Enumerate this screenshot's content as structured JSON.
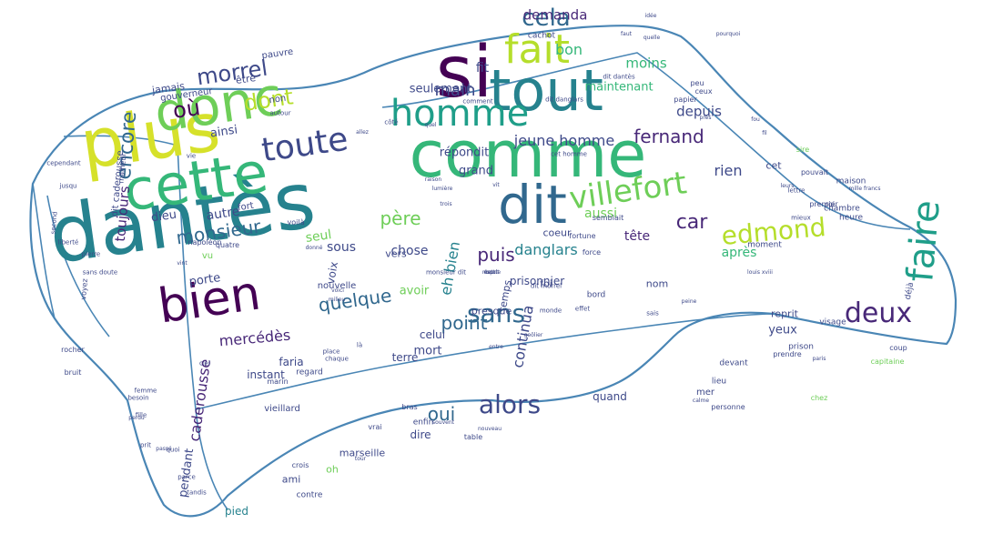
{
  "outline_color": "#4a86b5",
  "palette": [
    "#440154",
    "#482878",
    "#3e4989",
    "#31688e",
    "#26828e",
    "#1f9e89",
    "#35b779",
    "#6ece58",
    "#b5de2b",
    "#fde725"
  ],
  "words": [
    {
      "text": "dantès",
      "color": "#26828e",
      "size": 86
    },
    {
      "text": "comme",
      "color": "#35b779",
      "size": 70
    },
    {
      "text": "plus",
      "color": "#d6e12a",
      "size": 74
    },
    {
      "text": "si",
      "color": "#440154",
      "size": 78
    },
    {
      "text": "cette",
      "color": "#35b779",
      "size": 62
    },
    {
      "text": "tout",
      "color": "#26828e",
      "size": 62
    },
    {
      "text": "donc",
      "color": "#6ece58",
      "size": 58
    },
    {
      "text": "dit",
      "color": "#31688e",
      "size": 58
    },
    {
      "text": "bien",
      "color": "#440154",
      "size": 52
    },
    {
      "text": "fait",
      "color": "#b5de2b",
      "size": 44
    },
    {
      "text": "homme",
      "color": "#1f9e89",
      "size": 40
    },
    {
      "text": "faire",
      "color": "#1f9e89",
      "size": 40
    },
    {
      "text": "toute",
      "color": "#3e4989",
      "size": 36
    },
    {
      "text": "villefort",
      "color": "#6ece58",
      "size": 34
    },
    {
      "text": "edmond",
      "color": "#b5de2b",
      "size": 28
    },
    {
      "text": "deux",
      "color": "#482878",
      "size": 30
    },
    {
      "text": "alors",
      "color": "#3e4989",
      "size": 28
    },
    {
      "text": "sans",
      "color": "#31688e",
      "size": 28
    },
    {
      "text": "morrel",
      "color": "#3e4989",
      "size": 24
    },
    {
      "text": "cela",
      "color": "#31688e",
      "size": 26
    },
    {
      "text": "encore",
      "color": "#31688e",
      "size": 22
    },
    {
      "text": "monsieur",
      "color": "#31688e",
      "size": 20
    },
    {
      "text": "quelque",
      "color": "#31688e",
      "size": 20
    },
    {
      "text": "où",
      "color": "#440154",
      "size": 24
    },
    {
      "text": "dont",
      "color": "#b5de2b",
      "size": 24
    },
    {
      "text": "fernand",
      "color": "#482878",
      "size": 20
    },
    {
      "text": "car",
      "color": "#482878",
      "size": 22
    },
    {
      "text": "point",
      "color": "#31688e",
      "size": 20
    },
    {
      "text": "oui",
      "color": "#31688e",
      "size": 20
    },
    {
      "text": "père",
      "color": "#6ece58",
      "size": 20
    },
    {
      "text": "puis",
      "color": "#482878",
      "size": 20
    },
    {
      "text": "main",
      "color": "#3e4989",
      "size": 18
    },
    {
      "text": "caderousse",
      "color": "#482878",
      "size": 16
    },
    {
      "text": "rien",
      "color": "#3e4989",
      "size": 16
    },
    {
      "text": "mercédès",
      "color": "#482878",
      "size": 16
    },
    {
      "text": "danglars",
      "color": "#26828e",
      "size": 16
    },
    {
      "text": "bon",
      "color": "#35b779",
      "size": 16
    },
    {
      "text": "jeune homme",
      "color": "#3e4989",
      "size": 16
    },
    {
      "text": "continua",
      "color": "#3e4989",
      "size": 16
    },
    {
      "text": "eh bien",
      "color": "#26828e",
      "size": 16
    },
    {
      "text": "demanda",
      "color": "#482878",
      "size": 15
    },
    {
      "text": "moins",
      "color": "#35b779",
      "size": 15
    },
    {
      "text": "toujours",
      "color": "#482878",
      "size": 15
    },
    {
      "text": "depuis",
      "color": "#3e4989",
      "size": 15
    },
    {
      "text": "tête",
      "color": "#482878",
      "size": 14
    },
    {
      "text": "pendant",
      "color": "#3e4989",
      "size": 13
    },
    {
      "text": "après",
      "color": "#35b779",
      "size": 14
    },
    {
      "text": "chose",
      "color": "#3e4989",
      "size": 14
    },
    {
      "text": "autre",
      "color": "#3e4989",
      "size": 14
    },
    {
      "text": "seul",
      "color": "#6ece58",
      "size": 14
    },
    {
      "text": "sous",
      "color": "#3e4989",
      "size": 14
    },
    {
      "text": "aussi",
      "color": "#6ece58",
      "size": 14
    },
    {
      "text": "maintenant",
      "color": "#35b779",
      "size": 13
    },
    {
      "text": "répondit",
      "color": "#3e4989",
      "size": 13
    },
    {
      "text": "seulement",
      "color": "#3e4989",
      "size": 13
    },
    {
      "text": "fit",
      "color": "#3e4989",
      "size": 14
    },
    {
      "text": "grand",
      "color": "#3e4989",
      "size": 13
    },
    {
      "text": "yeux",
      "color": "#3e4989",
      "size": 13
    },
    {
      "text": "ainsi",
      "color": "#3e4989",
      "size": 13
    },
    {
      "text": "dieu",
      "color": "#3e4989",
      "size": 13
    },
    {
      "text": "porte",
      "color": "#3e4989",
      "size": 13
    },
    {
      "text": "avoir",
      "color": "#6ece58",
      "size": 13
    },
    {
      "text": "voix",
      "color": "#3e4989",
      "size": 12
    },
    {
      "text": "mort",
      "color": "#3e4989",
      "size": 13
    },
    {
      "text": "celui",
      "color": "#3e4989",
      "size": 12
    },
    {
      "text": "terre",
      "color": "#3e4989",
      "size": 12
    },
    {
      "text": "faria",
      "color": "#3e4989",
      "size": 12
    },
    {
      "text": "instant",
      "color": "#3e4989",
      "size": 12
    },
    {
      "text": "prisonnier",
      "color": "#3e4989",
      "size": 12
    },
    {
      "text": "quand",
      "color": "#3e4989",
      "size": 12
    },
    {
      "text": "dire",
      "color": "#3e4989",
      "size": 12
    },
    {
      "text": "marseille",
      "color": "#3e4989",
      "size": 11
    },
    {
      "text": "ami",
      "color": "#3e4989",
      "size": 11
    },
    {
      "text": "oh",
      "color": "#6ece58",
      "size": 11
    },
    {
      "text": "pied",
      "color": "#26828e",
      "size": 12
    },
    {
      "text": "vers",
      "color": "#3e4989",
      "size": 11
    },
    {
      "text": "temps",
      "color": "#3e4989",
      "size": 11
    },
    {
      "text": "presque",
      "color": "#3e4989",
      "size": 11
    },
    {
      "text": "nom",
      "color": "#3e4989",
      "size": 11
    },
    {
      "text": "coeur",
      "color": "#3e4989",
      "size": 11
    },
    {
      "text": "être",
      "color": "#3e4989",
      "size": 11
    },
    {
      "text": "jamais",
      "color": "#3e4989",
      "size": 11
    },
    {
      "text": "reprit",
      "color": "#3e4989",
      "size": 11
    },
    {
      "text": "cet",
      "color": "#3e4989",
      "size": 11
    },
    {
      "text": "foi",
      "color": "#3e4989",
      "size": 11
    },
    {
      "text": "nouvelle",
      "color": "#3e4989",
      "size": 10
    },
    {
      "text": "mer",
      "color": "#3e4989",
      "size": 10
    },
    {
      "text": "vu",
      "color": "#6ece58",
      "size": 10
    },
    {
      "text": "fort",
      "color": "#3e4989",
      "size": 10
    },
    {
      "text": "dit caderousse",
      "color": "#3e4989",
      "size": 10
    },
    {
      "text": "non",
      "color": "#3e4989",
      "size": 10
    },
    {
      "text": "pauvre",
      "color": "#3e4989",
      "size": 10
    },
    {
      "text": "gouverneur",
      "color": "#3e4989",
      "size": 10
    },
    {
      "text": "regard",
      "color": "#3e4989",
      "size": 9
    },
    {
      "text": "vieillard",
      "color": "#3e4989",
      "size": 10
    },
    {
      "text": "lieu",
      "color": "#3e4989",
      "size": 9
    },
    {
      "text": "visage",
      "color": "#3e4989",
      "size": 9
    },
    {
      "text": "prison",
      "color": "#3e4989",
      "size": 9
    },
    {
      "text": "maison",
      "color": "#3e4989",
      "size": 9
    },
    {
      "text": "heure",
      "color": "#3e4989",
      "size": 9
    },
    {
      "text": "chambre",
      "color": "#3e4989",
      "size": 9
    },
    {
      "text": "cachot",
      "color": "#3e4989",
      "size": 9
    },
    {
      "text": "devant",
      "color": "#3e4989",
      "size": 9
    },
    {
      "text": "déjà",
      "color": "#3e4989",
      "size": 9
    },
    {
      "text": "enfin",
      "color": "#3e4989",
      "size": 9
    },
    {
      "text": "contre",
      "color": "#3e4989",
      "size": 9
    },
    {
      "text": "force",
      "color": "#3e4989",
      "size": 8
    },
    {
      "text": "bord",
      "color": "#3e4989",
      "size": 9
    },
    {
      "text": "moment",
      "color": "#3e4989",
      "size": 9
    },
    {
      "text": "premier",
      "color": "#3e4989",
      "size": 8
    },
    {
      "text": "roi",
      "color": "#3e4989",
      "size": 8
    },
    {
      "text": "quatre",
      "color": "#3e4989",
      "size": 8
    },
    {
      "text": "napoléon",
      "color": "#3e4989",
      "size": 8
    },
    {
      "text": "malheur",
      "color": "#3e4989",
      "size": 8
    },
    {
      "text": "pouvait",
      "color": "#3e4989",
      "size": 8
    },
    {
      "text": "semblait",
      "color": "#3e4989",
      "size": 8
    },
    {
      "text": "fortune",
      "color": "#3e4989",
      "size": 8
    },
    {
      "text": "voyez",
      "color": "#3e4989",
      "size": 8
    },
    {
      "text": "sire",
      "color": "#6ece58",
      "size": 8
    },
    {
      "text": "voilà",
      "color": "#3e4989",
      "size": 8
    },
    {
      "text": "papier",
      "color": "#3e4989",
      "size": 8
    },
    {
      "text": "peu",
      "color": "#3e4989",
      "size": 8
    },
    {
      "text": "ceux",
      "color": "#3e4989",
      "size": 8
    },
    {
      "text": "vrai",
      "color": "#3e4989",
      "size": 8
    },
    {
      "text": "table",
      "color": "#3e4989",
      "size": 8
    },
    {
      "text": "bras",
      "color": "#3e4989",
      "size": 8
    },
    {
      "text": "personne",
      "color": "#3e4989",
      "size": 8
    },
    {
      "text": "chez",
      "color": "#6ece58",
      "size": 8
    },
    {
      "text": "coup",
      "color": "#3e4989",
      "size": 8
    },
    {
      "text": "capitaine",
      "color": "#6ece58",
      "size": 8
    },
    {
      "text": "rocher",
      "color": "#3e4989",
      "size": 8
    },
    {
      "text": "bruit",
      "color": "#3e4989",
      "size": 8
    },
    {
      "text": "marin",
      "color": "#3e4989",
      "size": 8
    },
    {
      "text": "crois",
      "color": "#3e4989",
      "size": 8
    },
    {
      "text": "prendre",
      "color": "#3e4989",
      "size": 8
    },
    {
      "text": "dit danglars",
      "color": "#3e4989",
      "size": 7
    },
    {
      "text": "monsieur dit",
      "color": "#3e4989",
      "size": 7
    },
    {
      "text": "dit dantès",
      "color": "#3e4989",
      "size": 7
    },
    {
      "text": "dit morrel",
      "color": "#3e4989",
      "size": 7
    },
    {
      "text": "cet homme",
      "color": "#3e4989",
      "size": 7
    },
    {
      "text": "lettre",
      "color": "#3e4989",
      "size": 7
    },
    {
      "text": "mieux",
      "color": "#3e4989",
      "size": 7
    },
    {
      "text": "femme",
      "color": "#3e4989",
      "size": 7
    },
    {
      "text": "besoin",
      "color": "#3e4989",
      "size": 7
    },
    {
      "text": "fille",
      "color": "#3e4989",
      "size": 7
    },
    {
      "text": "prit",
      "color": "#3e4989",
      "size": 7
    },
    {
      "text": "quoi",
      "color": "#3e4989",
      "size": 7
    },
    {
      "text": "parce",
      "color": "#3e4989",
      "size": 7
    },
    {
      "text": "tandis",
      "color": "#3e4989",
      "size": 7
    },
    {
      "text": "ciel",
      "color": "#3e4989",
      "size": 7
    },
    {
      "text": "autour",
      "color": "#3e4989",
      "size": 7
    },
    {
      "text": "côté",
      "color": "#3e4989",
      "size": 7
    },
    {
      "text": "comment",
      "color": "#3e4989",
      "size": 7
    },
    {
      "text": "sais",
      "color": "#3e4989",
      "size": 7
    },
    {
      "text": "monde",
      "color": "#3e4989",
      "size": 7
    },
    {
      "text": "effet",
      "color": "#3e4989",
      "size": 7
    },
    {
      "text": "place",
      "color": "#3e4989",
      "size": 7
    },
    {
      "text": "chaque",
      "color": "#3e4989",
      "size": 7
    },
    {
      "text": "liberté",
      "color": "#3e4989",
      "size": 7
    },
    {
      "text": "second",
      "color": "#3e4989",
      "size": 7
    },
    {
      "text": "jusqu",
      "color": "#3e4989",
      "size": 7
    },
    {
      "text": "cependant",
      "color": "#3e4989",
      "size": 7
    },
    {
      "text": "sans doute",
      "color": "#3e4989",
      "size": 7
    },
    {
      "text": "pierre",
      "color": "#3e4989",
      "size": 7
    },
    {
      "text": "vie",
      "color": "#3e4989",
      "size": 7
    },
    {
      "text": "là",
      "color": "#3e4989",
      "size": 7
    },
    {
      "text": "mille francs",
      "color": "#3e4989",
      "size": 6
    },
    {
      "text": "louis xviii",
      "color": "#3e4989",
      "size": 6
    },
    {
      "text": "peine",
      "color": "#3e4989",
      "size": 6
    },
    {
      "text": "entre",
      "color": "#3e4989",
      "size": 6
    },
    {
      "text": "geôlier",
      "color": "#3e4989",
      "size": 6
    },
    {
      "text": "idée",
      "color": "#3e4989",
      "size": 6
    },
    {
      "text": "faut",
      "color": "#3e4989",
      "size": 6
    },
    {
      "text": "quelle",
      "color": "#3e4989",
      "size": 6
    },
    {
      "text": "pourquoi",
      "color": "#3e4989",
      "size": 6
    },
    {
      "text": "fou",
      "color": "#3e4989",
      "size": 6
    },
    {
      "text": "fil",
      "color": "#3e4989",
      "size": 6
    },
    {
      "text": "raison",
      "color": "#3e4989",
      "size": 6
    },
    {
      "text": "vit",
      "color": "#3e4989",
      "size": 6
    },
    {
      "text": "près",
      "color": "#3e4989",
      "size": 6
    },
    {
      "text": "leurs",
      "color": "#3e4989",
      "size": 6
    },
    {
      "text": "lumière",
      "color": "#3e4989",
      "size": 6
    },
    {
      "text": "trois",
      "color": "#3e4989",
      "size": 6
    },
    {
      "text": "donné",
      "color": "#3e4989",
      "size": 6
    },
    {
      "text": "milieu",
      "color": "#3e4989",
      "size": 6
    },
    {
      "text": "voici",
      "color": "#3e4989",
      "size": 6
    },
    {
      "text": "paris",
      "color": "#3e4989",
      "size": 6
    },
    {
      "text": "calme",
      "color": "#3e4989",
      "size": 6
    },
    {
      "text": "perdu",
      "color": "#3e4989",
      "size": 6
    },
    {
      "text": "passé",
      "color": "#3e4989",
      "size": 6
    },
    {
      "text": "allez",
      "color": "#3e4989",
      "size": 6
    },
    {
      "text": "vint",
      "color": "#3e4989",
      "size": 6
    },
    {
      "text": "quel",
      "color": "#3e4989",
      "size": 6
    },
    {
      "text": "souvent",
      "color": "#3e4989",
      "size": 6
    },
    {
      "text": "nouveau",
      "color": "#3e4989",
      "size": 6
    },
    {
      "text": "tour",
      "color": "#3e4989",
      "size": 6
    },
    {
      "text": "mettre",
      "color": "#3e4989",
      "size": 6
    },
    {
      "text": "esprit",
      "color": "#3e4989",
      "size": 6
    },
    {
      "text": "bout",
      "color": "#3e4989",
      "size": 6
    }
  ]
}
